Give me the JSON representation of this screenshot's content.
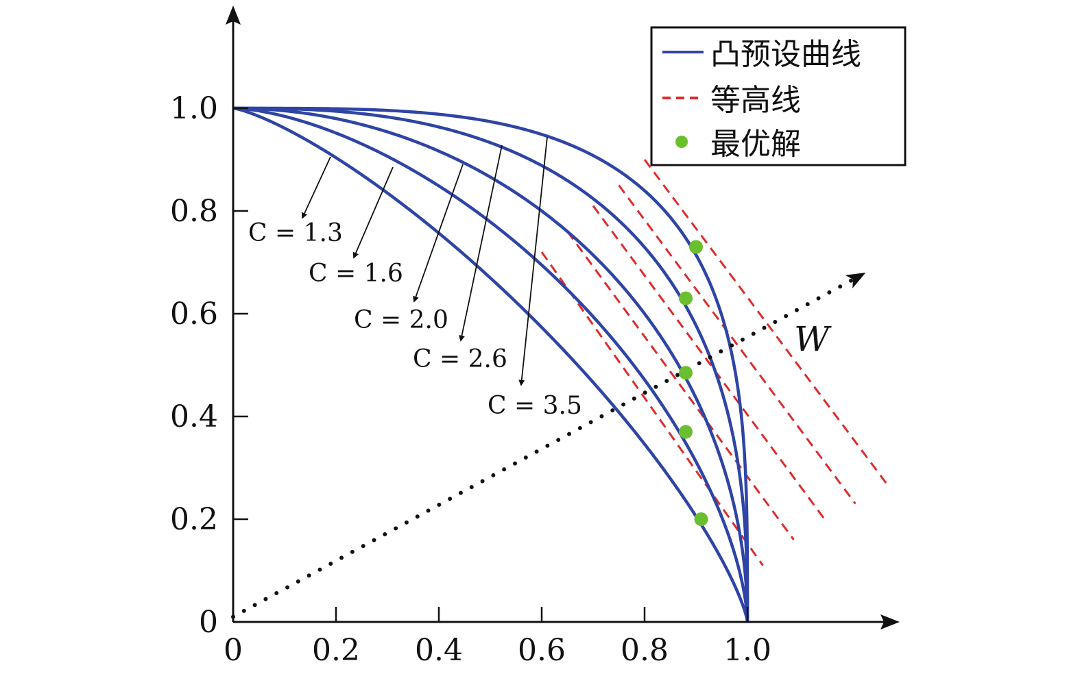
{
  "chart_data": {
    "type": "line",
    "title": "",
    "xlabel": "",
    "ylabel": "",
    "xlim": [
      0,
      1.25
    ],
    "ylim": [
      0,
      1.15
    ],
    "xticks": [
      "0",
      "0.2",
      "0.4",
      "0.6",
      "0.8",
      "1.0"
    ],
    "yticks": [
      "0",
      "0.2",
      "0.4",
      "0.6",
      "0.8",
      "1.0"
    ],
    "grid": false,
    "legend": {
      "placement": "top-right",
      "entries": [
        {
          "label": "凸预设曲线",
          "style": "solid",
          "color": "#2e44a6"
        },
        {
          "label": "等高线",
          "style": "dashed",
          "color": "#e02a2a"
        },
        {
          "label": "最优解",
          "style": "marker",
          "color": "#6abf2e"
        }
      ]
    },
    "series": [
      {
        "curve_label": "C = 1.3",
        "c": 1.3
      },
      {
        "curve_label": "C = 1.6",
        "c": 1.6
      },
      {
        "curve_label": "C = 2.0",
        "c": 2.0
      },
      {
        "curve_label": "C = 2.6",
        "c": 2.6
      },
      {
        "curve_label": "C = 3.5",
        "c": 3.5
      }
    ],
    "optimal_points": [
      {
        "x": 0.91,
        "y": 0.2
      },
      {
        "x": 0.88,
        "y": 0.37
      },
      {
        "x": 0.88,
        "y": 0.485
      },
      {
        "x": 0.88,
        "y": 0.63
      },
      {
        "x": 0.9,
        "y": 0.73
      }
    ],
    "contour_lines": [
      {
        "x1": 0.6,
        "y1": 0.72,
        "x2": 1.03,
        "y2": 0.11
      },
      {
        "x1": 0.65,
        "y1": 0.76,
        "x2": 1.09,
        "y2": 0.16
      },
      {
        "x1": 0.7,
        "y1": 0.81,
        "x2": 1.15,
        "y2": 0.2
      },
      {
        "x1": 0.75,
        "y1": 0.85,
        "x2": 1.21,
        "y2": 0.23
      },
      {
        "x1": 0.8,
        "y1": 0.9,
        "x2": 1.27,
        "y2": 0.27
      }
    ],
    "weight_vector": {
      "label": "W",
      "x1": 0,
      "y1": 0.01,
      "x2": 1.23,
      "y2": 0.68
    },
    "colors": {
      "curve": "#2e44a6",
      "contour": "#e02a2a",
      "optimum": "#6abf2e",
      "axis": "#111111"
    }
  }
}
